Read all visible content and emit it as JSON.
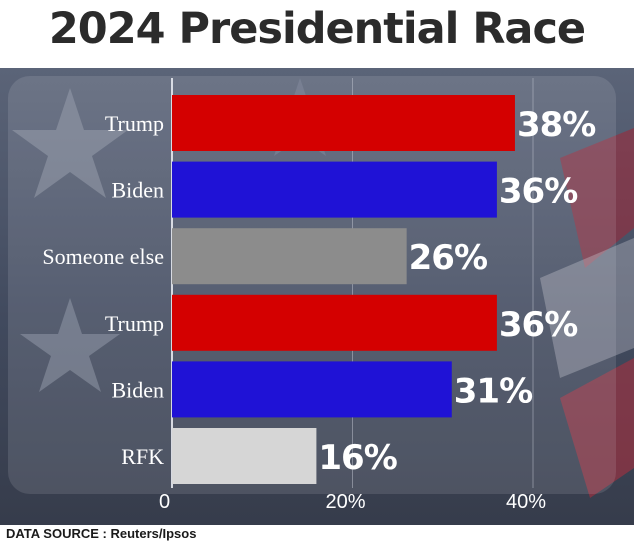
{
  "title": "2024 Presidential Race",
  "source": "DATA SOURCE : Reuters/Ipsos",
  "colors": {
    "trump": "#d40000",
    "biden": "#1f12d6",
    "someone_else": "#8c8c8c",
    "rfk": "#d6d6d6",
    "label_text": "#ffffff",
    "value_text": "#ffffff",
    "panel": "#eef0f6",
    "gridline": "#bfc4d0"
  },
  "chart_data": {
    "type": "bar",
    "orientation": "horizontal",
    "title": "2024 Presidential Race",
    "categories": [
      "Trump",
      "Biden",
      "Someone else",
      "Trump",
      "Biden",
      "RFK"
    ],
    "values": [
      38,
      36,
      26,
      36,
      31,
      16
    ],
    "value_labels": [
      "38%",
      "36%",
      "26%",
      "36%",
      "31%",
      "16%"
    ],
    "bar_colors": [
      "#d40000",
      "#1f12d6",
      "#8c8c8c",
      "#d40000",
      "#1f12d6",
      "#d6d6d6"
    ],
    "xlim": [
      0,
      40
    ],
    "xticks": [
      0,
      20,
      40
    ],
    "xtick_labels": [
      "0",
      "20%",
      "40%"
    ],
    "grid": true,
    "legend": "none"
  }
}
